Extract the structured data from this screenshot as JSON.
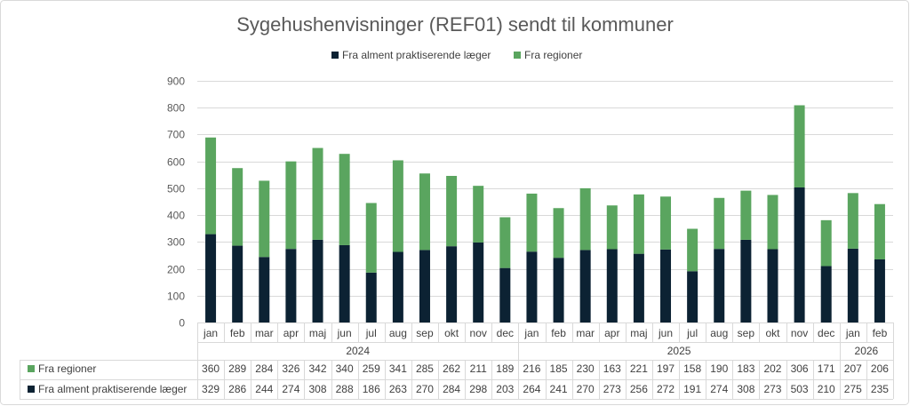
{
  "colors": {
    "alment": "#0c2233",
    "regioner": "#5aa55f",
    "grid": "#d9d9d9",
    "text": "#404040"
  },
  "chart_data": {
    "type": "bar",
    "stacked": true,
    "title": "Sygehushenvisninger (REF01) sendt til kommuner",
    "xlabel": "",
    "ylabel": "",
    "categories": [
      "jan",
      "feb",
      "mar",
      "apr",
      "maj",
      "jun",
      "jul",
      "aug",
      "sep",
      "okt",
      "nov",
      "dec",
      "jan",
      "feb",
      "mar",
      "apr",
      "maj",
      "jun",
      "jul",
      "aug",
      "sep",
      "okt",
      "nov",
      "dec",
      "jan",
      "feb"
    ],
    "category_years": [
      "2024",
      "2024",
      "2024",
      "2024",
      "2024",
      "2024",
      "2024",
      "2024",
      "2024",
      "2024",
      "2024",
      "2024",
      "2025",
      "2025",
      "2025",
      "2025",
      "2025",
      "2025",
      "2025",
      "2025",
      "2025",
      "2025",
      "2025",
      "2025",
      "2026",
      "2026"
    ],
    "series": [
      {
        "name": "Fra alment praktiserende læger",
        "color": "#0c2233",
        "values": [
          329,
          286,
          244,
          274,
          308,
          288,
          186,
          263,
          270,
          284,
          298,
          203,
          264,
          241,
          270,
          273,
          256,
          272,
          191,
          274,
          308,
          273,
          503,
          210,
          275,
          235
        ]
      },
      {
        "name": "Fra regioner",
        "color": "#5aa55f",
        "values": [
          360,
          289,
          284,
          326,
          342,
          340,
          259,
          341,
          285,
          262,
          211,
          189,
          216,
          185,
          230,
          163,
          221,
          197,
          158,
          190,
          183,
          202,
          306,
          171,
          207,
          206
        ]
      }
    ],
    "ylim": [
      0,
      900
    ],
    "yticks": [
      0,
      100,
      200,
      300,
      400,
      500,
      600,
      700,
      800,
      900
    ],
    "grid": true,
    "legend": "top",
    "data_table": true
  }
}
